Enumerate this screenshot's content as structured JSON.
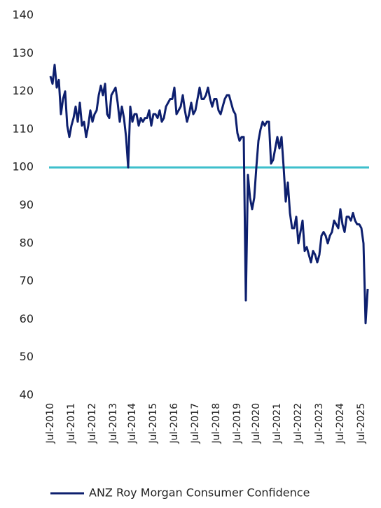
{
  "chart_data": {
    "type": "line",
    "categories": [
      "Jul-2010",
      null,
      null,
      null,
      null,
      null,
      null,
      null,
      null,
      null,
      "Jul-2011",
      null,
      null,
      null,
      null,
      null,
      null,
      null,
      null,
      null,
      "Jul-2012",
      null,
      null,
      null,
      null,
      null,
      null,
      null,
      null,
      null,
      "Jul-2013",
      null,
      null,
      null,
      null,
      null,
      null,
      null,
      null,
      "Jul-2014",
      null,
      null,
      null,
      null,
      null,
      null,
      null,
      null,
      null,
      "Jul-2015",
      null,
      null,
      null,
      null,
      null,
      null,
      null,
      null,
      null,
      "Jul-2016",
      null,
      null,
      null,
      null,
      null,
      null,
      null,
      null,
      null,
      "Jul-2017",
      null,
      null,
      null,
      null,
      null,
      null,
      null,
      null,
      null,
      "Jul-2018",
      null,
      null,
      null,
      null,
      null,
      null,
      null,
      null,
      null,
      "Jul-2019",
      null,
      null,
      null,
      null,
      null,
      null,
      null,
      null,
      "Jul-2020",
      null,
      null,
      null,
      null,
      null,
      null,
      null,
      null,
      null,
      "Jul-2021",
      null,
      null,
      null,
      null,
      null,
      null,
      null,
      null,
      null,
      "Jul-2022",
      null,
      null,
      null,
      null,
      null,
      null,
      null,
      null,
      null,
      "Jul-2023",
      null,
      null,
      null,
      null,
      null,
      null,
      null,
      null,
      null,
      "Jul-2024",
      null,
      null,
      null,
      null,
      null,
      null,
      null,
      null,
      null,
      "Jul-2025",
      null,
      null,
      null
    ],
    "series": [
      {
        "name": "ANZ Roy Morgan Consumer Confidence",
        "color": "#0d1f6e",
        "values": [
          124,
          122,
          127,
          121,
          123,
          114,
          118,
          120,
          111,
          108,
          111,
          113,
          116,
          112,
          117,
          111,
          112,
          108,
          111,
          115,
          112,
          114,
          115,
          119,
          121.5,
          119,
          122,
          114,
          113,
          119,
          120,
          121,
          117,
          112,
          116,
          113,
          108,
          100,
          116,
          112,
          114,
          114,
          111,
          113,
          112,
          113,
          113,
          115,
          111,
          114,
          114,
          113,
          115,
          112,
          113,
          116,
          117,
          118,
          118,
          121,
          114,
          115,
          116,
          119,
          115,
          112,
          114,
          117,
          114,
          115,
          118,
          121,
          118,
          118,
          119,
          121,
          118,
          116,
          118,
          118,
          115,
          114,
          116,
          118,
          119,
          119,
          117,
          115,
          114,
          109,
          107,
          108,
          108,
          65,
          98,
          92,
          89,
          92,
          100,
          107,
          110,
          112,
          111,
          112,
          112,
          101,
          102,
          105,
          108,
          105,
          108,
          100,
          91,
          96,
          88,
          84,
          84,
          87,
          80,
          83,
          86,
          78,
          79,
          77,
          75,
          78,
          77,
          75,
          77,
          82,
          83,
          82,
          80,
          82,
          83,
          86,
          85,
          84,
          89,
          85,
          83,
          87,
          87,
          86,
          88,
          86,
          85,
          85,
          84,
          80,
          59,
          68
        ]
      }
    ],
    "ylim": [
      40,
      140
    ],
    "yticks": [
      40,
      50,
      60,
      70,
      80,
      90,
      100,
      110,
      120,
      130,
      140
    ],
    "reference_line": {
      "value": 100,
      "color": "#3dbfcc"
    },
    "grid": false,
    "legend": "bottom"
  }
}
